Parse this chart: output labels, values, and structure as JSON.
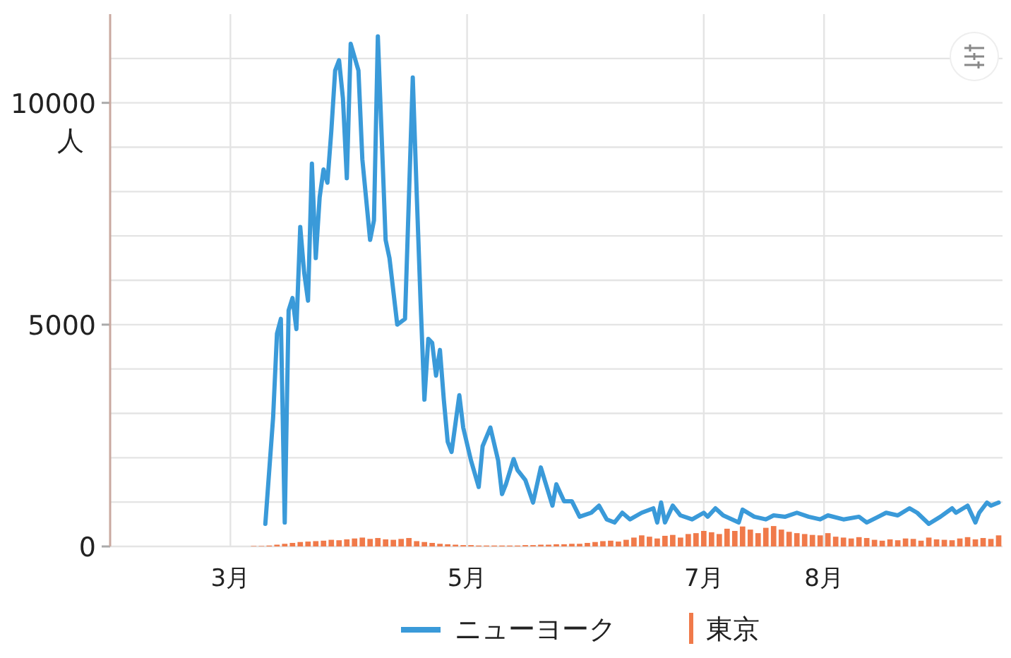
{
  "chart_data": {
    "type": "line",
    "ylabel": "人",
    "xlim": [
      "--01-30",
      "--09-16"
    ],
    "ylim": [
      0,
      12000
    ],
    "xticks": [
      {
        "value": "--03-01",
        "label": "3月"
      },
      {
        "value": "--05-01",
        "label": "5月"
      },
      {
        "value": "--07-01",
        "label": "7月"
      },
      {
        "value": "--08-01",
        "label": "8月"
      }
    ],
    "yticks": [
      0,
      {
        "value": 1000,
        "label": null
      },
      {
        "value": 2000,
        "label": null
      },
      {
        "value": 3000,
        "label": null
      },
      {
        "value": 4000,
        "label": null
      },
      5000,
      {
        "value": 6000,
        "label": null
      },
      {
        "value": 7000,
        "label": null
      },
      {
        "value": 8000,
        "label": null
      },
      {
        "value": 9000,
        "label": null
      },
      10000,
      {
        "value": 11000,
        "label": null
      }
    ],
    "grid": true,
    "legend": "bottom",
    "series": [
      {
        "name": "ニューヨーク",
        "color": "#3a9ad9",
        "x": [
          "--03-10",
          "--03-12",
          "--03-13",
          "--03-14",
          "--03-15",
          "--03-16",
          "--03-17",
          "--03-18",
          "--03-19",
          "--03-20",
          "--03-21",
          "--03-22",
          "--03-23",
          "--03-24",
          "--03-25",
          "--03-26",
          "--03-27",
          "--03-28",
          "--03-29",
          "--03-30",
          "--03-31",
          "--04-01",
          "--04-03",
          "--04-04",
          "--04-06",
          "--04-07",
          "--04-08",
          "--04-10",
          "--04-11",
          "--04-13",
          "--04-15",
          "--04-17",
          "--04-18",
          "--04-19",
          "--04-20",
          "--04-21",
          "--04-22",
          "--04-23",
          "--04-24",
          "--04-25",
          "--04-26",
          "--04-27",
          "--04-29",
          "--04-30",
          "--05-02",
          "--05-04",
          "--05-05",
          "--05-07",
          "--05-09",
          "--05-10",
          "--05-11",
          "--05-13",
          "--05-14",
          "--05-16",
          "--05-18",
          "--05-20",
          "--05-23",
          "--05-24",
          "--05-26",
          "--05-28",
          "--05-30",
          "--06-02",
          "--06-04",
          "--06-06",
          "--06-08",
          "--06-10",
          "--06-12",
          "--06-15",
          "--06-18",
          "--06-19",
          "--06-20",
          "--06-21",
          "--06-23",
          "--06-25",
          "--06-28",
          "--07-01",
          "--07-02",
          "--07-04",
          "--07-06",
          "--07-10",
          "--07-11",
          "--07-14",
          "--07-17",
          "--07-19",
          "--07-22",
          "--07-25",
          "--07-28",
          "--07-31",
          "--08-02",
          "--08-06",
          "--08-10",
          "--08-12",
          "--08-15",
          "--08-17",
          "--08-20",
          "--08-23",
          "--08-25",
          "--08-28",
          "--08-31",
          "--09-03",
          "--09-04",
          "--09-07",
          "--09-09",
          "--09-10",
          "--09-12",
          "--09-13",
          "--09-15"
        ],
        "values": [
          510,
          2900,
          4800,
          5130,
          540,
          5320,
          5600,
          4900,
          7200,
          6180,
          5540,
          8630,
          6500,
          7870,
          8500,
          8200,
          9360,
          10730,
          10960,
          10100,
          8300,
          11330,
          10730,
          8730,
          6910,
          7350,
          11500,
          6910,
          6500,
          5000,
          5130,
          10570,
          7990,
          5540,
          3310,
          4680,
          4590,
          3850,
          4430,
          3310,
          2360,
          2130,
          3410,
          2680,
          1940,
          1340,
          2260,
          2680,
          1940,
          1180,
          1400,
          1970,
          1720,
          1500,
          990,
          1780,
          920,
          1400,
          1020,
          1020,
          670,
          760,
          920,
          610,
          540,
          760,
          610,
          760,
          860,
          540,
          990,
          540,
          920,
          700,
          610,
          760,
          670,
          860,
          700,
          540,
          830,
          670,
          610,
          700,
          670,
          760,
          670,
          610,
          700,
          610,
          670,
          540,
          670,
          760,
          700,
          860,
          760,
          510,
          670,
          860,
          760,
          920,
          540,
          760,
          990,
          920,
          990
        ]
      },
      {
        "name": "東京",
        "type": "bar",
        "color": "#f07a4a",
        "x": [
          "--03-01",
          "--03-03",
          "--03-05",
          "--03-07",
          "--03-09",
          "--03-11",
          "--03-13",
          "--03-15",
          "--03-17",
          "--03-19",
          "--03-21",
          "--03-23",
          "--03-25",
          "--03-27",
          "--03-29",
          "--03-31",
          "--04-02",
          "--04-04",
          "--04-06",
          "--04-08",
          "--04-10",
          "--04-12",
          "--04-14",
          "--04-16",
          "--04-18",
          "--04-20",
          "--04-22",
          "--04-24",
          "--04-26",
          "--04-28",
          "--04-30",
          "--05-02",
          "--05-04",
          "--05-06",
          "--05-08",
          "--05-10",
          "--05-12",
          "--05-14",
          "--05-16",
          "--05-18",
          "--05-20",
          "--05-22",
          "--05-24",
          "--05-26",
          "--05-28",
          "--05-30",
          "--06-01",
          "--06-03",
          "--06-05",
          "--06-07",
          "--06-09",
          "--06-11",
          "--06-13",
          "--06-15",
          "--06-17",
          "--06-19",
          "--06-21",
          "--06-23",
          "--06-25",
          "--06-27",
          "--06-29",
          "--07-01",
          "--07-03",
          "--07-05",
          "--07-07",
          "--07-09",
          "--07-11",
          "--07-13",
          "--07-15",
          "--07-17",
          "--07-19",
          "--07-21",
          "--07-23",
          "--07-25",
          "--07-27",
          "--07-29",
          "--07-31",
          "--08-02",
          "--08-04",
          "--08-06",
          "--08-08",
          "--08-10",
          "--08-12",
          "--08-14",
          "--08-16",
          "--08-18",
          "--08-20",
          "--08-22",
          "--08-24",
          "--08-26",
          "--08-28",
          "--08-30",
          "--09-01",
          "--09-03",
          "--09-05",
          "--09-07",
          "--09-09",
          "--09-11",
          "--09-13",
          "--09-15"
        ],
        "values": [
          0,
          0,
          0,
          10,
          10,
          20,
          40,
          60,
          80,
          100,
          110,
          120,
          130,
          150,
          140,
          160,
          180,
          200,
          170,
          190,
          160,
          150,
          170,
          190,
          120,
          100,
          80,
          60,
          50,
          40,
          30,
          30,
          20,
          20,
          20,
          20,
          20,
          20,
          30,
          30,
          40,
          40,
          50,
          50,
          60,
          60,
          80,
          100,
          120,
          130,
          110,
          150,
          200,
          250,
          220,
          180,
          240,
          260,
          200,
          280,
          300,
          350,
          320,
          280,
          400,
          350,
          450,
          380,
          300,
          420,
          460,
          380,
          330,
          300,
          280,
          260,
          250,
          300,
          220,
          200,
          180,
          210,
          190,
          150,
          130,
          160,
          140,
          180,
          170,
          130,
          200,
          160,
          150,
          140,
          180,
          210,
          160,
          190,
          170,
          250
        ]
      }
    ]
  }
}
